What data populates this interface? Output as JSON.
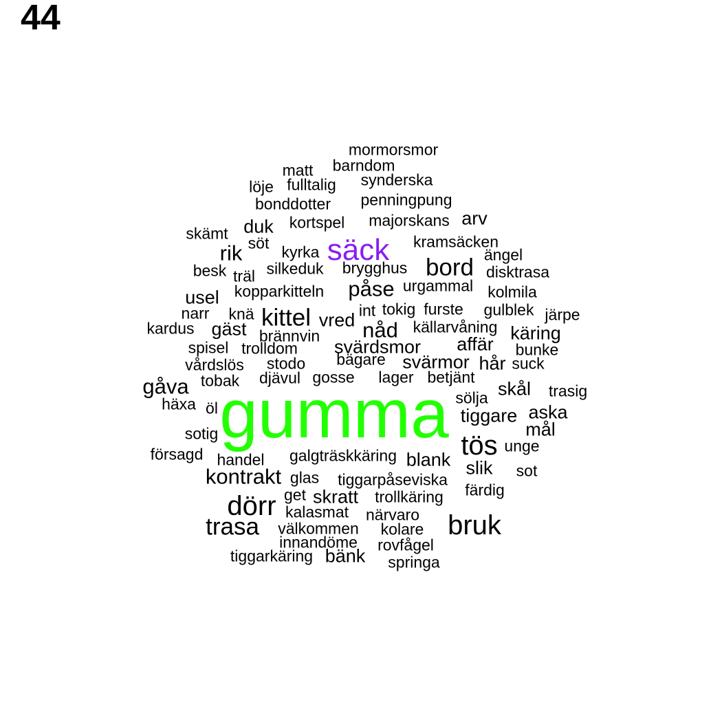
{
  "page_number": "44",
  "colors": {
    "default": "#000000",
    "top": "#22ff00",
    "second": "#8a1ef0"
  },
  "words": [
    {
      "text": "gumma",
      "color": "#22ff00"
    },
    {
      "text": "säck",
      "color": "#8a1ef0"
    },
    {
      "text": "mormorsmor"
    },
    {
      "text": "barndom"
    },
    {
      "text": "matt"
    },
    {
      "text": "synderska"
    },
    {
      "text": "löje"
    },
    {
      "text": "fulltalig"
    },
    {
      "text": "bonddotter"
    },
    {
      "text": "penningpung"
    },
    {
      "text": "duk"
    },
    {
      "text": "kortspel"
    },
    {
      "text": "majorskans"
    },
    {
      "text": "arv"
    },
    {
      "text": "skämt"
    },
    {
      "text": "söt"
    },
    {
      "text": "kramsäcken"
    },
    {
      "text": "rik"
    },
    {
      "text": "kyrka"
    },
    {
      "text": "ängel"
    },
    {
      "text": "besk"
    },
    {
      "text": "silkeduk"
    },
    {
      "text": "brygghus"
    },
    {
      "text": "bord"
    },
    {
      "text": "disktrasa"
    },
    {
      "text": "träl"
    },
    {
      "text": "påse"
    },
    {
      "text": "urgammal"
    },
    {
      "text": "kopparkitteln"
    },
    {
      "text": "kolmila"
    },
    {
      "text": "usel"
    },
    {
      "text": "int"
    },
    {
      "text": "tokig"
    },
    {
      "text": "furste"
    },
    {
      "text": "gulblek"
    },
    {
      "text": "narr"
    },
    {
      "text": "knä"
    },
    {
      "text": "kittel"
    },
    {
      "text": "vred"
    },
    {
      "text": "järpe"
    },
    {
      "text": "kardus"
    },
    {
      "text": "gäst"
    },
    {
      "text": "nåd"
    },
    {
      "text": "källarvåning"
    },
    {
      "text": "käring"
    },
    {
      "text": "brännvin"
    },
    {
      "text": "affär"
    },
    {
      "text": "spisel"
    },
    {
      "text": "trolldom"
    },
    {
      "text": "svärdsmor"
    },
    {
      "text": "bunke"
    },
    {
      "text": "vårdslös"
    },
    {
      "text": "stodo"
    },
    {
      "text": "bägare"
    },
    {
      "text": "svärmor"
    },
    {
      "text": "hår"
    },
    {
      "text": "suck"
    },
    {
      "text": "djävul"
    },
    {
      "text": "gosse"
    },
    {
      "text": "lager"
    },
    {
      "text": "betjänt"
    },
    {
      "text": "gåva"
    },
    {
      "text": "tobak"
    },
    {
      "text": "skål"
    },
    {
      "text": "trasig"
    },
    {
      "text": "sölja"
    },
    {
      "text": "häxa"
    },
    {
      "text": "öl"
    },
    {
      "text": "tiggare"
    },
    {
      "text": "aska"
    },
    {
      "text": "sotig"
    },
    {
      "text": "mål"
    },
    {
      "text": "tös"
    },
    {
      "text": "unge"
    },
    {
      "text": "försagd"
    },
    {
      "text": "handel"
    },
    {
      "text": "galgträskkäring"
    },
    {
      "text": "blank"
    },
    {
      "text": "slik"
    },
    {
      "text": "kontrakt"
    },
    {
      "text": "glas"
    },
    {
      "text": "tiggarpåseviska"
    },
    {
      "text": "sot"
    },
    {
      "text": "get"
    },
    {
      "text": "skratt"
    },
    {
      "text": "trollkäring"
    },
    {
      "text": "färdig"
    },
    {
      "text": "dörr"
    },
    {
      "text": "kalasmat"
    },
    {
      "text": "närvaro"
    },
    {
      "text": "trasa"
    },
    {
      "text": "välkommen"
    },
    {
      "text": "kolare"
    },
    {
      "text": "bruk"
    },
    {
      "text": "innandöme"
    },
    {
      "text": "rovfågel"
    },
    {
      "text": "tiggarkäring"
    },
    {
      "text": "bänk"
    },
    {
      "text": "springa"
    }
  ]
}
